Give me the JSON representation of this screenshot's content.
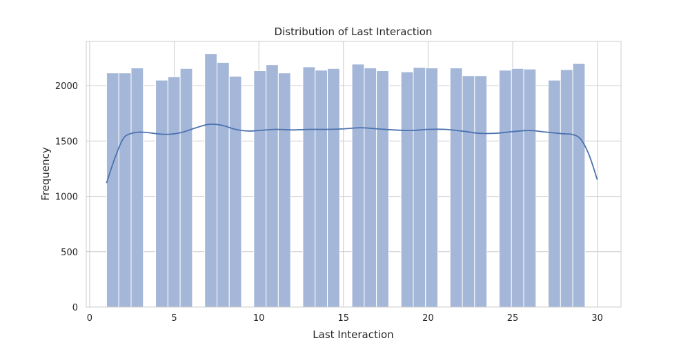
{
  "chart_data": {
    "type": "bar",
    "subtype": "histogram-with-kde",
    "title": "Distribution of Last Interaction",
    "xlabel": "Last Interaction",
    "ylabel": "Frequency",
    "xlim": [
      -0.2,
      31.4
    ],
    "ylim": [
      0,
      2400
    ],
    "xticks": [
      0,
      5,
      10,
      15,
      20,
      25,
      30
    ],
    "yticks": [
      0,
      500,
      1000,
      1500,
      2000
    ],
    "grid": true,
    "bin_edges": [
      1.0,
      1.725,
      2.45,
      3.175,
      3.9,
      4.625,
      5.35,
      6.075,
      6.8,
      7.525,
      8.25,
      8.975,
      9.7,
      10.425,
      11.15,
      11.875,
      12.6,
      13.325,
      14.05,
      14.775,
      15.5,
      16.225,
      16.95,
      17.675,
      18.4,
      19.125,
      19.85,
      20.575,
      21.3,
      22.025,
      22.75,
      23.475,
      24.2,
      24.925,
      25.65,
      26.375,
      27.1,
      27.825,
      28.55,
      29.275,
      30.0
    ],
    "values": [
      2115,
      2115,
      2160,
      0,
      2050,
      2080,
      2155,
      0,
      2290,
      2210,
      2085,
      0,
      2135,
      2190,
      2115,
      0,
      2170,
      2140,
      2155,
      0,
      2195,
      2160,
      2135,
      0,
      2125,
      2165,
      2160,
      0,
      2160,
      2090,
      2090,
      0,
      2140,
      2155,
      2150,
      0,
      2050,
      2145,
      2200,
      0
    ],
    "kde": {
      "x": [
        1.0,
        1.5,
        2.0,
        2.5,
        3.0,
        3.5,
        4.0,
        4.5,
        5.0,
        5.5,
        6.0,
        6.5,
        7.0,
        7.5,
        8.0,
        8.5,
        9.0,
        9.5,
        10.0,
        11.0,
        12.0,
        13.0,
        14.0,
        15.0,
        16.0,
        17.0,
        18.0,
        19.0,
        20.0,
        21.0,
        22.0,
        23.0,
        24.0,
        25.0,
        26.0,
        27.0,
        28.0,
        28.5,
        29.0,
        29.5,
        30.0
      ],
      "y": [
        1120,
        1350,
        1525,
        1570,
        1580,
        1575,
        1565,
        1560,
        1565,
        1580,
        1605,
        1630,
        1650,
        1650,
        1635,
        1610,
        1595,
        1590,
        1595,
        1605,
        1600,
        1605,
        1605,
        1610,
        1620,
        1610,
        1600,
        1595,
        1605,
        1605,
        1590,
        1570,
        1570,
        1585,
        1595,
        1580,
        1565,
        1560,
        1520,
        1380,
        1150
      ]
    },
    "colors": {
      "bars": "#a4b7d8",
      "kde": "#4c72b0",
      "grid": "#cccccc",
      "axes": "#cccccc"
    }
  }
}
